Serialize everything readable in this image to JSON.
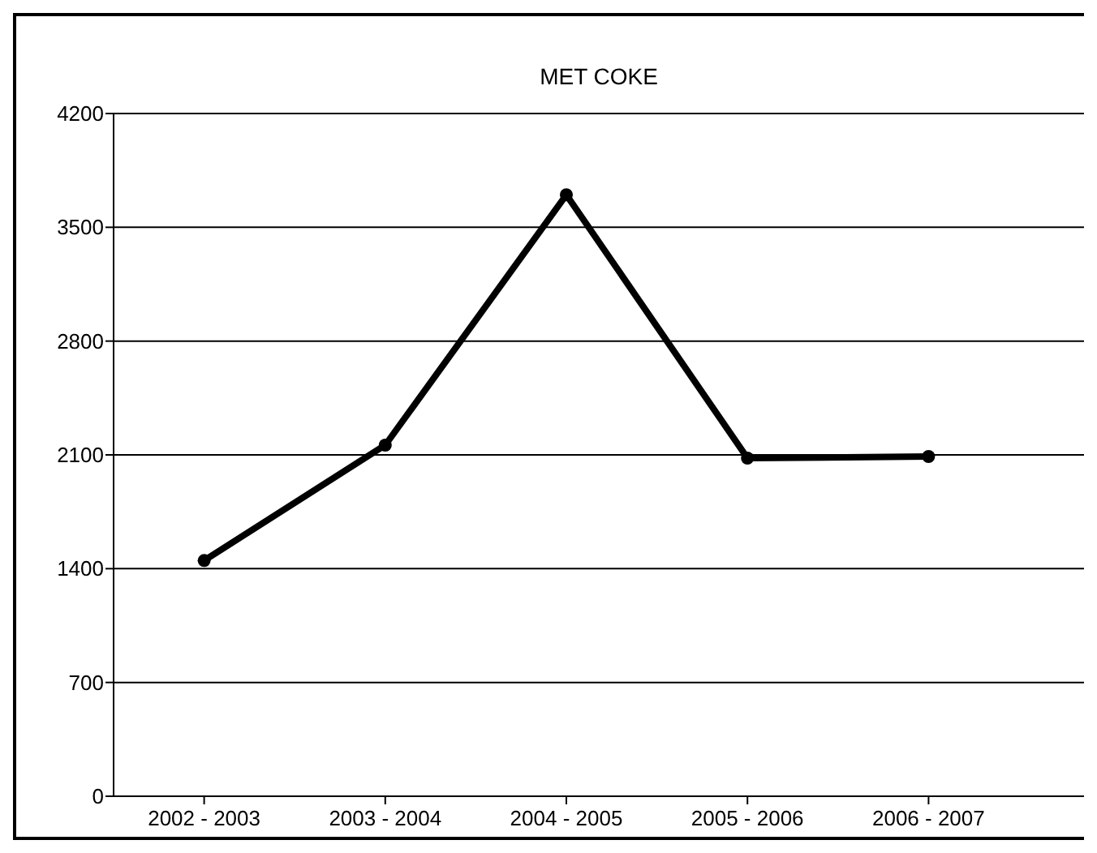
{
  "chart_data": {
    "type": "line",
    "title": "MET COKE",
    "categories": [
      "2002 - 2003",
      "2003 - 2004",
      "2004 - 2005",
      "2005 - 2006",
      "2006 - 2007"
    ],
    "series": [
      {
        "color": "#000000",
        "values": [
          1450,
          2160,
          3700,
          2080,
          2090
        ]
      }
    ],
    "ylim": [
      0,
      4200
    ],
    "yticks": [
      0,
      700,
      1400,
      2100,
      2800,
      3500,
      4200
    ],
    "grid": "y",
    "marker": "circle",
    "line_style": "solid"
  }
}
